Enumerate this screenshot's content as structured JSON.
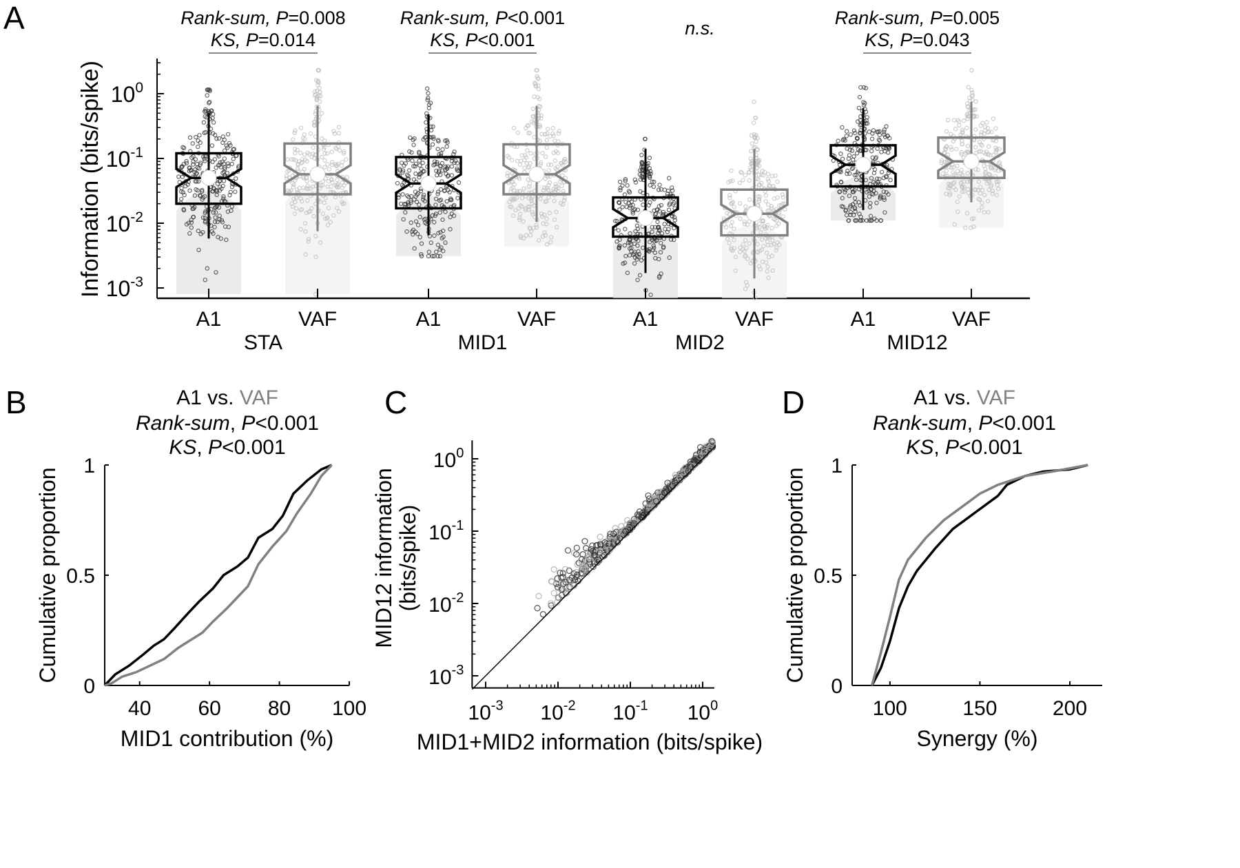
{
  "colors": {
    "a1": "#000000",
    "vaf": "#808080",
    "a1_points": "#333333",
    "vaf_points": "#c0c0c0",
    "violin_a1": "#ebebeb",
    "violin_vaf": "#f4f4f4"
  },
  "chart_data": [
    {
      "panel": "A",
      "type": "box",
      "ylabel": "Information (bits/spike)",
      "yscale": "log",
      "ylim": [
        0.0007,
        3.5
      ],
      "yticks": [
        {
          "base": "10",
          "exp": "0"
        },
        {
          "base": "10",
          "exp": "-1"
        },
        {
          "base": "10",
          "exp": "-2"
        },
        {
          "base": "10",
          "exp": "-3"
        }
      ],
      "groups": [
        {
          "name": "STA",
          "stats": [
            "Rank-sum, P=0.008",
            "KS, P=0.014"
          ],
          "stats_parts": [
            [
              "Rank-sum, ",
              "P",
              "=0.008"
            ],
            [
              "KS, ",
              "P",
              "=0.014"
            ]
          ],
          "significant": true
        },
        {
          "name": "MID1",
          "stats_parts": [
            [
              "Rank-sum, ",
              "P",
              "<0.001"
            ],
            [
              "KS, ",
              "P",
              "<0.001"
            ]
          ],
          "significant": true
        },
        {
          "name": "MID2",
          "stats_parts": [
            [
              "n.s.",
              "",
              ""
            ]
          ],
          "significant": false
        },
        {
          "name": "MID12",
          "stats_parts": [
            [
              "Rank-sum, ",
              "P",
              "=0.005"
            ],
            [
              "KS, ",
              "P",
              "=0.043"
            ]
          ],
          "significant": true
        }
      ],
      "boxes": [
        {
          "group": "STA",
          "area": "A1",
          "q1": 0.02,
          "median": 0.05,
          "q3": 0.12,
          "whisker_low": 0.0058,
          "whisker_high": 0.5,
          "min": 0.0008,
          "max": 1.15
        },
        {
          "group": "STA",
          "area": "VAF",
          "q1": 0.028,
          "median": 0.057,
          "q3": 0.17,
          "whisker_low": 0.0075,
          "whisker_high": 0.65,
          "min": 0.0008,
          "max": 2.3
        },
        {
          "group": "MID1",
          "area": "A1",
          "q1": 0.017,
          "median": 0.041,
          "q3": 0.105,
          "whisker_low": 0.0065,
          "whisker_high": 0.48,
          "min": 0.0031,
          "max": 1.2
        },
        {
          "group": "MID1",
          "area": "VAF",
          "q1": 0.028,
          "median": 0.057,
          "q3": 0.165,
          "whisker_low": 0.0105,
          "whisker_high": 0.65,
          "min": 0.0044,
          "max": 2.3
        },
        {
          "group": "MID2",
          "area": "A1",
          "q1": 0.0062,
          "median": 0.012,
          "q3": 0.025,
          "whisker_low": 0.0017,
          "whisker_high": 0.14,
          "min": 0.0007,
          "max": 0.2
        },
        {
          "group": "MID2",
          "area": "VAF",
          "q1": 0.0065,
          "median": 0.014,
          "q3": 0.033,
          "whisker_low": 0.0014,
          "whisker_high": 0.14,
          "min": 0.0007,
          "max": 0.75
        },
        {
          "group": "MID12",
          "area": "A1",
          "q1": 0.037,
          "median": 0.08,
          "q3": 0.16,
          "whisker_low": 0.016,
          "whisker_high": 0.6,
          "min": 0.011,
          "max": 1.25
        },
        {
          "group": "MID12",
          "area": "VAF",
          "q1": 0.05,
          "median": 0.09,
          "q3": 0.21,
          "whisker_low": 0.021,
          "whisker_high": 0.75,
          "min": 0.0085,
          "max": 2.3
        }
      ]
    },
    {
      "panel": "B",
      "type": "line",
      "title": [
        "A1 vs. ",
        "VAF"
      ],
      "stats_parts": [
        [
          "Rank-sum",
          ", ",
          "P",
          "<0.001"
        ],
        [
          "KS",
          ", ",
          "P",
          "<0.001"
        ]
      ],
      "xlabel": "MID1 contribution (%)",
      "ylabel": "Cumulative proportion",
      "xlim": [
        30,
        100
      ],
      "ylim": [
        0,
        1
      ],
      "xticks": [
        "40",
        "60",
        "80",
        "100"
      ],
      "yticks": [
        "0",
        "0.5",
        "1"
      ],
      "series": [
        {
          "name": "A1",
          "x": [
            30,
            33,
            37,
            41,
            44,
            47,
            50,
            54,
            57,
            61,
            64,
            68,
            71,
            74,
            78,
            81,
            84,
            88,
            92,
            95
          ],
          "y": [
            0,
            0.05,
            0.09,
            0.14,
            0.18,
            0.21,
            0.26,
            0.33,
            0.38,
            0.44,
            0.5,
            0.54,
            0.58,
            0.67,
            0.71,
            0.77,
            0.87,
            0.93,
            0.98,
            1
          ]
        },
        {
          "name": "VAF",
          "x": [
            30,
            32,
            35,
            39,
            43,
            47,
            51,
            54,
            58,
            61,
            65,
            68,
            71,
            74,
            78,
            82,
            85,
            89,
            92,
            95
          ],
          "y": [
            0,
            0.01,
            0.04,
            0.06,
            0.09,
            0.12,
            0.17,
            0.2,
            0.24,
            0.29,
            0.35,
            0.4,
            0.45,
            0.55,
            0.63,
            0.7,
            0.78,
            0.87,
            0.95,
            1
          ]
        }
      ]
    },
    {
      "panel": "C",
      "type": "scatter",
      "xlabel": "MID1+MID2 information (bits/spike)",
      "ylabel": [
        "MID12 information",
        "(bits/spike)"
      ],
      "xscale": "log",
      "yscale": "log",
      "xlim": [
        0.00065,
        1.45
      ],
      "ylim": [
        0.00068,
        1.8
      ],
      "xticks": [
        {
          "base": "10",
          "exp": "-3"
        },
        {
          "base": "10",
          "exp": "-2"
        },
        {
          "base": "10",
          "exp": "-1"
        },
        {
          "base": "10",
          "exp": "0"
        }
      ],
      "yticks": [
        {
          "base": "10",
          "exp": "0"
        },
        {
          "base": "10",
          "exp": "-1"
        },
        {
          "base": "10",
          "exp": "-2"
        },
        {
          "base": "10",
          "exp": "-3"
        }
      ],
      "x_range_points": [
        0.005,
        1.4
      ],
      "reference_line": "y = x"
    },
    {
      "panel": "D",
      "type": "line",
      "title": [
        "A1 vs. ",
        "VAF"
      ],
      "stats_parts": [
        [
          "Rank-sum",
          ", ",
          "P",
          "<0.001"
        ],
        [
          "KS",
          ", ",
          "P",
          "<0.001"
        ]
      ],
      "xlabel": "Synergy (%)",
      "ylabel": "Cumulative proportion",
      "xlim": [
        79,
        218
      ],
      "ylim": [
        0,
        1
      ],
      "xticks": [
        "100",
        "150",
        "200"
      ],
      "yticks": [
        "0",
        "0.5",
        "1"
      ],
      "series": [
        {
          "name": "A1",
          "x": [
            90,
            95,
            100,
            105,
            110,
            115,
            120,
            125,
            135,
            140,
            150,
            160,
            165,
            175,
            185,
            200,
            210
          ],
          "y": [
            0,
            0.08,
            0.2,
            0.35,
            0.45,
            0.52,
            0.57,
            0.62,
            0.71,
            0.74,
            0.8,
            0.86,
            0.91,
            0.95,
            0.97,
            0.98,
            1
          ]
        },
        {
          "name": "VAF",
          "x": [
            90,
            95,
            100,
            105,
            110,
            120,
            130,
            140,
            150,
            160,
            175,
            190,
            210
          ],
          "y": [
            0,
            0.15,
            0.31,
            0.48,
            0.57,
            0.67,
            0.75,
            0.81,
            0.87,
            0.91,
            0.95,
            0.97,
            1
          ]
        }
      ]
    }
  ],
  "panel_labels": [
    "A",
    "B",
    "C",
    "D"
  ]
}
